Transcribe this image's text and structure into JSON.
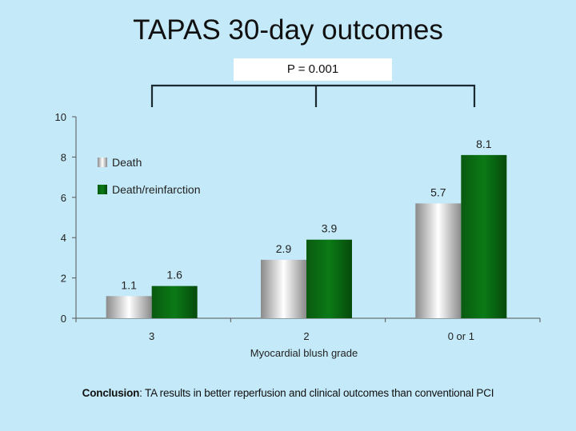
{
  "title": "TAPAS 30-day outcomes",
  "p_value_label": "P = 0.001",
  "conclusion": {
    "bold": "Conclusion",
    "text": ": TA results in better reperfusion and clinical outcomes than conventional PCI"
  },
  "chart_data": {
    "type": "bar",
    "title": "",
    "xlabel": "Myocardial blush grade",
    "ylabel": "",
    "ylim": [
      0,
      10
    ],
    "yticks": [
      0,
      2,
      4,
      6,
      8,
      10
    ],
    "categories": [
      "3",
      "2",
      "0 or 1"
    ],
    "series": [
      {
        "name": "Death",
        "values": [
          1.1,
          2.9,
          5.7
        ],
        "color": "#b8b8b8"
      },
      {
        "name": "Death/reinfarction",
        "values": [
          1.6,
          3.9,
          8.1
        ],
        "color": "#0a6a12"
      }
    ],
    "legend": "top-left",
    "grid": false
  }
}
